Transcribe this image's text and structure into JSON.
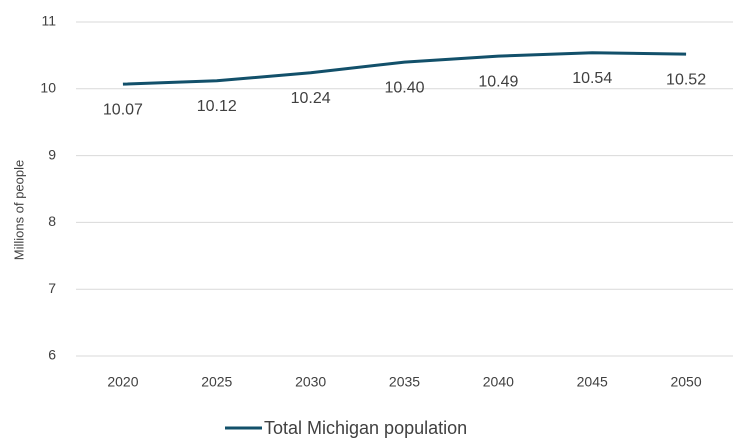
{
  "chart_data": {
    "type": "line",
    "y_label": "Millions of people",
    "categories": [
      "2020",
      "2025",
      "2030",
      "2035",
      "2040",
      "2045",
      "2050"
    ],
    "series": [
      {
        "name": "Total Michigan population",
        "color": "#12506a",
        "values": [
          10.07,
          10.12,
          10.24,
          10.4,
          10.49,
          10.54,
          10.52
        ],
        "value_labels": [
          "10.07",
          "10.12",
          "10.24",
          "10.40",
          "10.49",
          "10.54",
          "10.52"
        ]
      }
    ],
    "ylim": [
      6,
      11
    ],
    "yticks": [
      6,
      7,
      8,
      9,
      10,
      11
    ],
    "grid": true,
    "legend": "bottom"
  }
}
